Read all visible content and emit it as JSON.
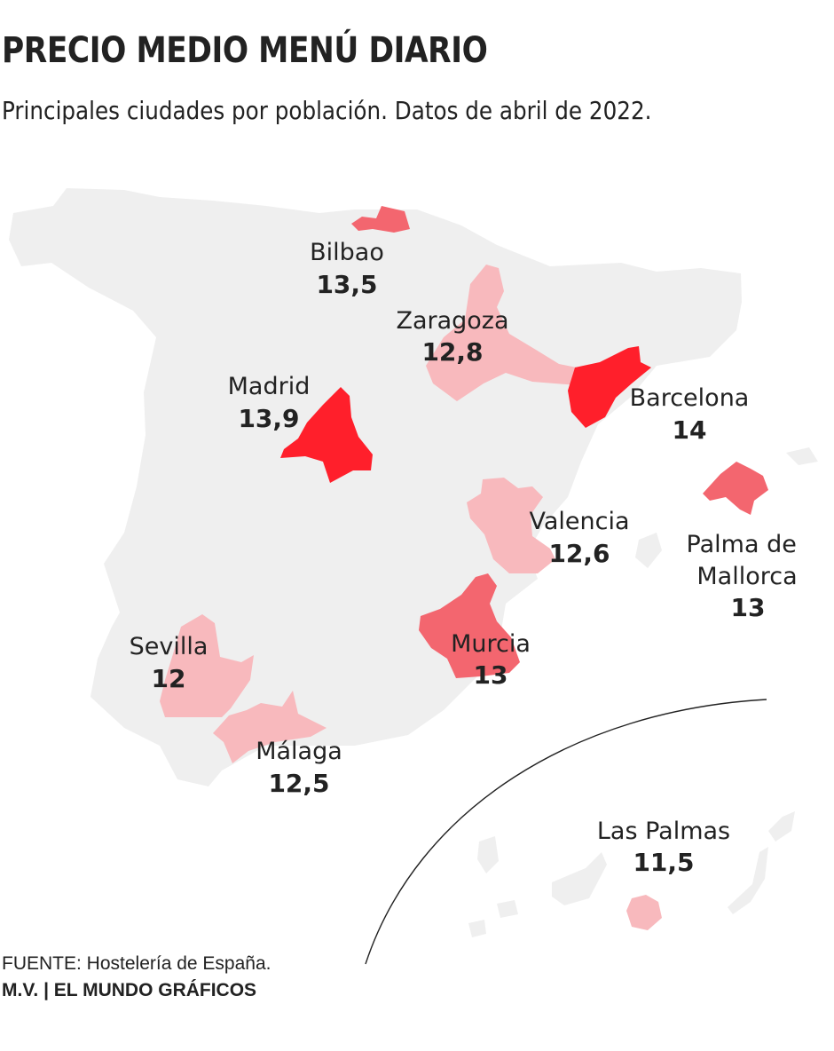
{
  "title": "PRECIO MEDIO MENÚ DIARIO",
  "subtitle": "Principales ciudades por población. Datos de abril de 2022.",
  "colors": {
    "land": "#efefef",
    "scale_low": "#f8b9bd",
    "scale_mid": "#f58c95",
    "scale_high": "#f3666f",
    "scale_max": "#ff1f2b",
    "divider": "#222222"
  },
  "cities": [
    {
      "id": "bilbao",
      "name": "Bilbao",
      "value": "13,5",
      "color": "#f3666f"
    },
    {
      "id": "zaragoza",
      "name": "Zaragoza",
      "value": "12,8",
      "color": "#f8b9bd"
    },
    {
      "id": "madrid",
      "name": "Madrid",
      "value": "13,9",
      "color": "#ff1f2b"
    },
    {
      "id": "barcelona",
      "name": "Barcelona",
      "value": "14",
      "color": "#ff1f2b"
    },
    {
      "id": "valencia",
      "name": "Valencia",
      "value": "12,6",
      "color": "#f8b9bd"
    },
    {
      "id": "palma",
      "name": "Palma de\nMallorca",
      "value": "13",
      "color": "#f3666f"
    },
    {
      "id": "murcia",
      "name": "Murcia",
      "value": "13",
      "color": "#f3666f"
    },
    {
      "id": "sevilla",
      "name": "Sevilla",
      "value": "12",
      "color": "#f8b9bd"
    },
    {
      "id": "malaga",
      "name": "Málaga",
      "value": "12,5",
      "color": "#f8b9bd"
    },
    {
      "id": "las-palmas",
      "name": "Las Palmas",
      "value": "11,5",
      "color": "#f8b9bd"
    }
  ],
  "footer": {
    "source": "FUENTE: Hostelería de España.",
    "credit": "M.V. | EL MUNDO GRÁFICOS"
  }
}
